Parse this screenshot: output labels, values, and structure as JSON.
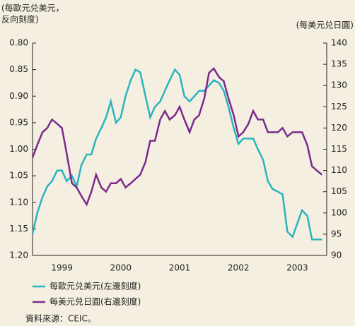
{
  "chart_data": {
    "type": "line",
    "ylabel_lines": [
      "(每歐元兑美元，",
      "反向刻度)"
    ],
    "y2label": "(每美元兑日圓)",
    "source": "資料來源：CEIC。",
    "x": [
      1999.0,
      1999.08,
      1999.17,
      1999.25,
      1999.33,
      1999.42,
      1999.5,
      1999.58,
      1999.67,
      1999.75,
      1999.83,
      1999.92,
      2000.0,
      2000.08,
      2000.17,
      2000.25,
      2000.33,
      2000.42,
      2000.5,
      2000.58,
      2000.67,
      2000.75,
      2000.83,
      2000.92,
      2001.0,
      2001.08,
      2001.17,
      2001.25,
      2001.33,
      2001.42,
      2001.5,
      2001.58,
      2001.67,
      2001.75,
      2001.83,
      2001.92,
      2002.0,
      2002.08,
      2002.17,
      2002.25,
      2002.33,
      2002.42,
      2002.5,
      2002.58,
      2002.67,
      2002.75,
      2002.83,
      2002.92,
      2003.0,
      2003.08,
      2003.17,
      2003.25,
      2003.33,
      2003.42,
      2003.5,
      2003.58,
      2003.67,
      2003.75,
      2003.83,
      2003.92
    ],
    "xlim": [
      1999,
      2004
    ],
    "xticks": [
      {
        "value": 1999.5,
        "label": "1999"
      },
      {
        "value": 2000.5,
        "label": "2000"
      },
      {
        "value": 2001.5,
        "label": "2001"
      },
      {
        "value": 2002.5,
        "label": "2002"
      },
      {
        "value": 2003.5,
        "label": "2003"
      }
    ],
    "ylim": [
      1.2,
      0.8
    ],
    "yticks": [
      {
        "value": 0.8,
        "label": "0.80"
      },
      0.85,
      {
        "value": 0.9,
        "label": "0.90"
      },
      0.95,
      {
        "value": 1.0,
        "label": "1.00"
      },
      1.05,
      {
        "value": 1.1,
        "label": "1.10"
      },
      1.15,
      {
        "value": 1.2,
        "label": "1.20"
      }
    ],
    "y2lim": [
      90,
      140
    ],
    "y2ticks": [
      90,
      95,
      100,
      105,
      110,
      115,
      120,
      125,
      130,
      135,
      140
    ],
    "series": [
      {
        "name": "每歐元兑美元(左邊刻度)",
        "color": "#2bb3bf",
        "axis": "y",
        "values": [
          1.16,
          1.12,
          1.09,
          1.07,
          1.06,
          1.04,
          1.04,
          1.06,
          1.05,
          1.07,
          1.03,
          1.01,
          1.01,
          0.98,
          0.96,
          0.94,
          0.91,
          0.95,
          0.94,
          0.9,
          0.87,
          0.85,
          0.855,
          0.9,
          0.94,
          0.92,
          0.91,
          0.89,
          0.87,
          0.85,
          0.86,
          0.9,
          0.91,
          0.9,
          0.89,
          0.89,
          0.88,
          0.87,
          0.875,
          0.89,
          0.92,
          0.96,
          0.99,
          0.98,
          0.98,
          0.98,
          1.0,
          1.02,
          1.06,
          1.075,
          1.08,
          1.085,
          1.155,
          1.165,
          1.14,
          1.115,
          1.125,
          1.17,
          1.17,
          1.17
        ]
      },
      {
        "name": "每美元兑日圓(右邊刻度)",
        "color": "#7b2a8c",
        "axis": "y2",
        "values": [
          113,
          116,
          119,
          120,
          122,
          121,
          120,
          114,
          107,
          106,
          104,
          102,
          105,
          109,
          106,
          105,
          107,
          107,
          108,
          106,
          107,
          108,
          109,
          112,
          117,
          117,
          122,
          124,
          122,
          123,
          125,
          122,
          119,
          122,
          123,
          127,
          133,
          134,
          132,
          131,
          127,
          123,
          118,
          119,
          121,
          124,
          122,
          122,
          119,
          119,
          119,
          120,
          118,
          119,
          119,
          119,
          116,
          111,
          110,
          109
        ]
      }
    ]
  }
}
